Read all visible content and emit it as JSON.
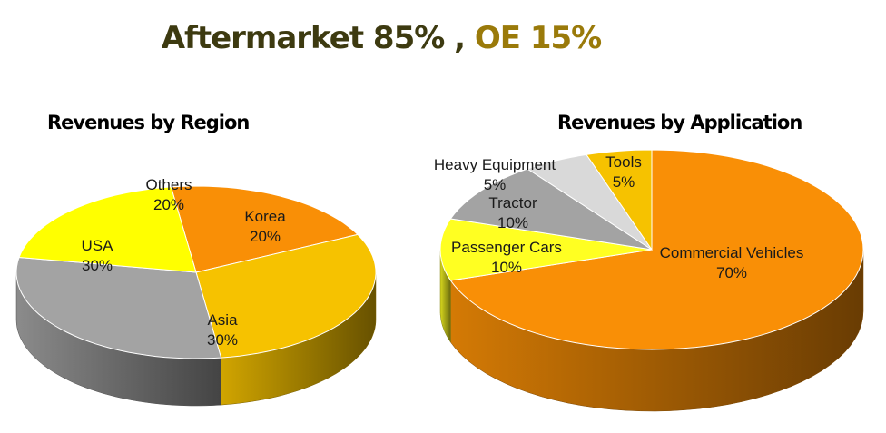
{
  "headline": {
    "part1": "Aftermarket 85%",
    "separator": " , ",
    "part2": "OE 15%"
  },
  "chart_data": [
    {
      "type": "pie",
      "title": "Revenues by Region",
      "slices": [
        {
          "label": "Korea",
          "value": 20,
          "display": "20%",
          "color": "#F98F06"
        },
        {
          "label": "Asia",
          "value": 30,
          "display": "30%",
          "color": "#F6C200"
        },
        {
          "label": "USA",
          "value": 30,
          "display": "30%",
          "color": "#A3A3A3"
        },
        {
          "label": "Others",
          "value": 20,
          "display": "20%",
          "color": "#FFFF00"
        }
      ]
    },
    {
      "type": "pie",
      "title": "Revenues by Application",
      "slices": [
        {
          "label": "Commercial Vehicles",
          "value": 70,
          "display": "70%",
          "color": "#F98F06"
        },
        {
          "label": "Passenger Cars",
          "value": 10,
          "display": "10%",
          "color": "#FFFF22"
        },
        {
          "label": "Tractor",
          "value": 10,
          "display": "10%",
          "color": "#A3A3A3"
        },
        {
          "label": "Heavy Equipment",
          "value": 5,
          "display": "5%",
          "color": "#D9D9D9"
        },
        {
          "label": "Tools",
          "value": 5,
          "display": "5%",
          "color": "#F6C200"
        }
      ]
    }
  ]
}
